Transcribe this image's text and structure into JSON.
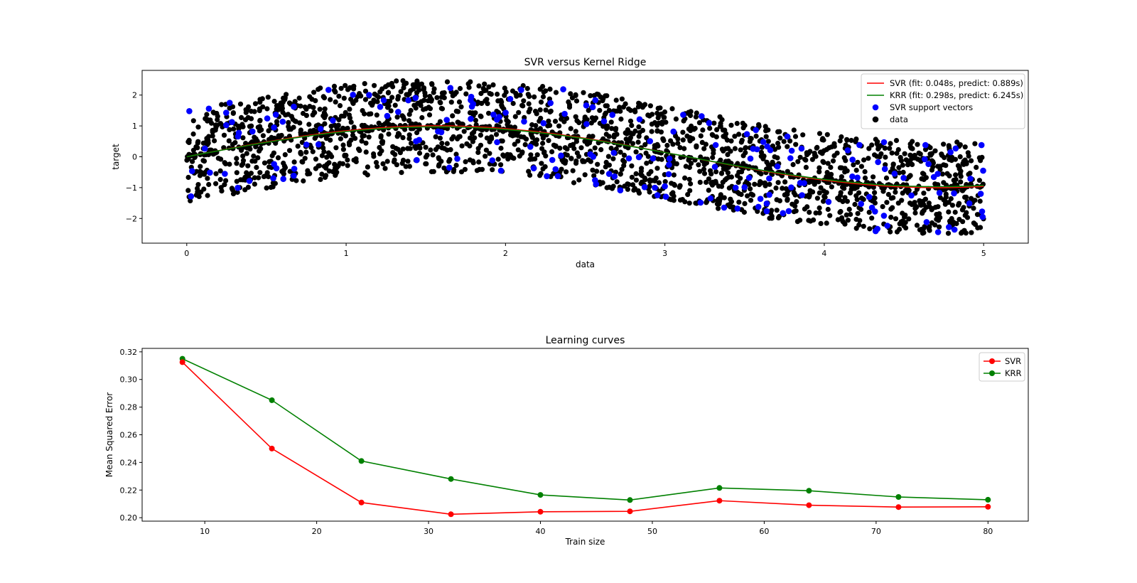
{
  "chart_data": [
    {
      "type": "scatter",
      "title": "SVR versus Kernel Ridge",
      "xlabel": "data",
      "ylabel": "target",
      "xlim": [
        -0.28,
        5.28
      ],
      "ylim": [
        -2.8,
        2.8
      ],
      "xticks": [
        0,
        1,
        2,
        3,
        4,
        5
      ],
      "yticks": [
        -2,
        -1,
        0,
        1,
        2
      ],
      "grid": false,
      "legend_position": "top-right",
      "series": [
        {
          "name": "SVR (fit: 0.048s, predict: 0.889s)",
          "kind": "line",
          "color": "#ff0000",
          "function": "sin(x)",
          "x_range": [
            0,
            5
          ]
        },
        {
          "name": "KRR (fit: 0.298s, predict: 6.245s)",
          "kind": "line",
          "color": "#008000",
          "function": "sin(x)",
          "x_range": [
            0,
            5
          ]
        },
        {
          "name": "SVR support vectors",
          "kind": "scatter",
          "color": "#0000ff",
          "count": 180
        },
        {
          "name": "data",
          "kind": "scatter",
          "color": "#000000",
          "count": 2000,
          "x_range": [
            0,
            5
          ],
          "spread": [
            -1.5,
            1.5
          ]
        }
      ]
    },
    {
      "type": "line",
      "title": "Learning curves",
      "xlabel": "Train size",
      "ylabel": "Mean Squared Error",
      "xlim": [
        4.4,
        83.6
      ],
      "ylim": [
        0.1975,
        0.3225
      ],
      "xticks": [
        10,
        20,
        30,
        40,
        50,
        60,
        70,
        80
      ],
      "yticks": [
        0.2,
        0.22,
        0.24,
        0.26,
        0.28,
        0.3,
        0.32
      ],
      "ytick_labels": [
        "0.20",
        "0.22",
        "0.24",
        "0.26",
        "0.28",
        "0.30",
        "0.32"
      ],
      "grid": false,
      "legend_position": "top-right",
      "x": [
        8,
        16,
        24,
        32,
        40,
        48,
        56,
        64,
        72,
        80
      ],
      "series": [
        {
          "name": "SVR",
          "color": "#ff0000",
          "values": [
            0.3125,
            0.25,
            0.211,
            0.2025,
            0.2043,
            0.2046,
            0.2123,
            0.209,
            0.2077,
            0.2079
          ]
        },
        {
          "name": "KRR",
          "color": "#008000",
          "values": [
            0.315,
            0.285,
            0.241,
            0.228,
            0.2165,
            0.2128,
            0.2215,
            0.2195,
            0.215,
            0.213
          ]
        }
      ]
    }
  ]
}
